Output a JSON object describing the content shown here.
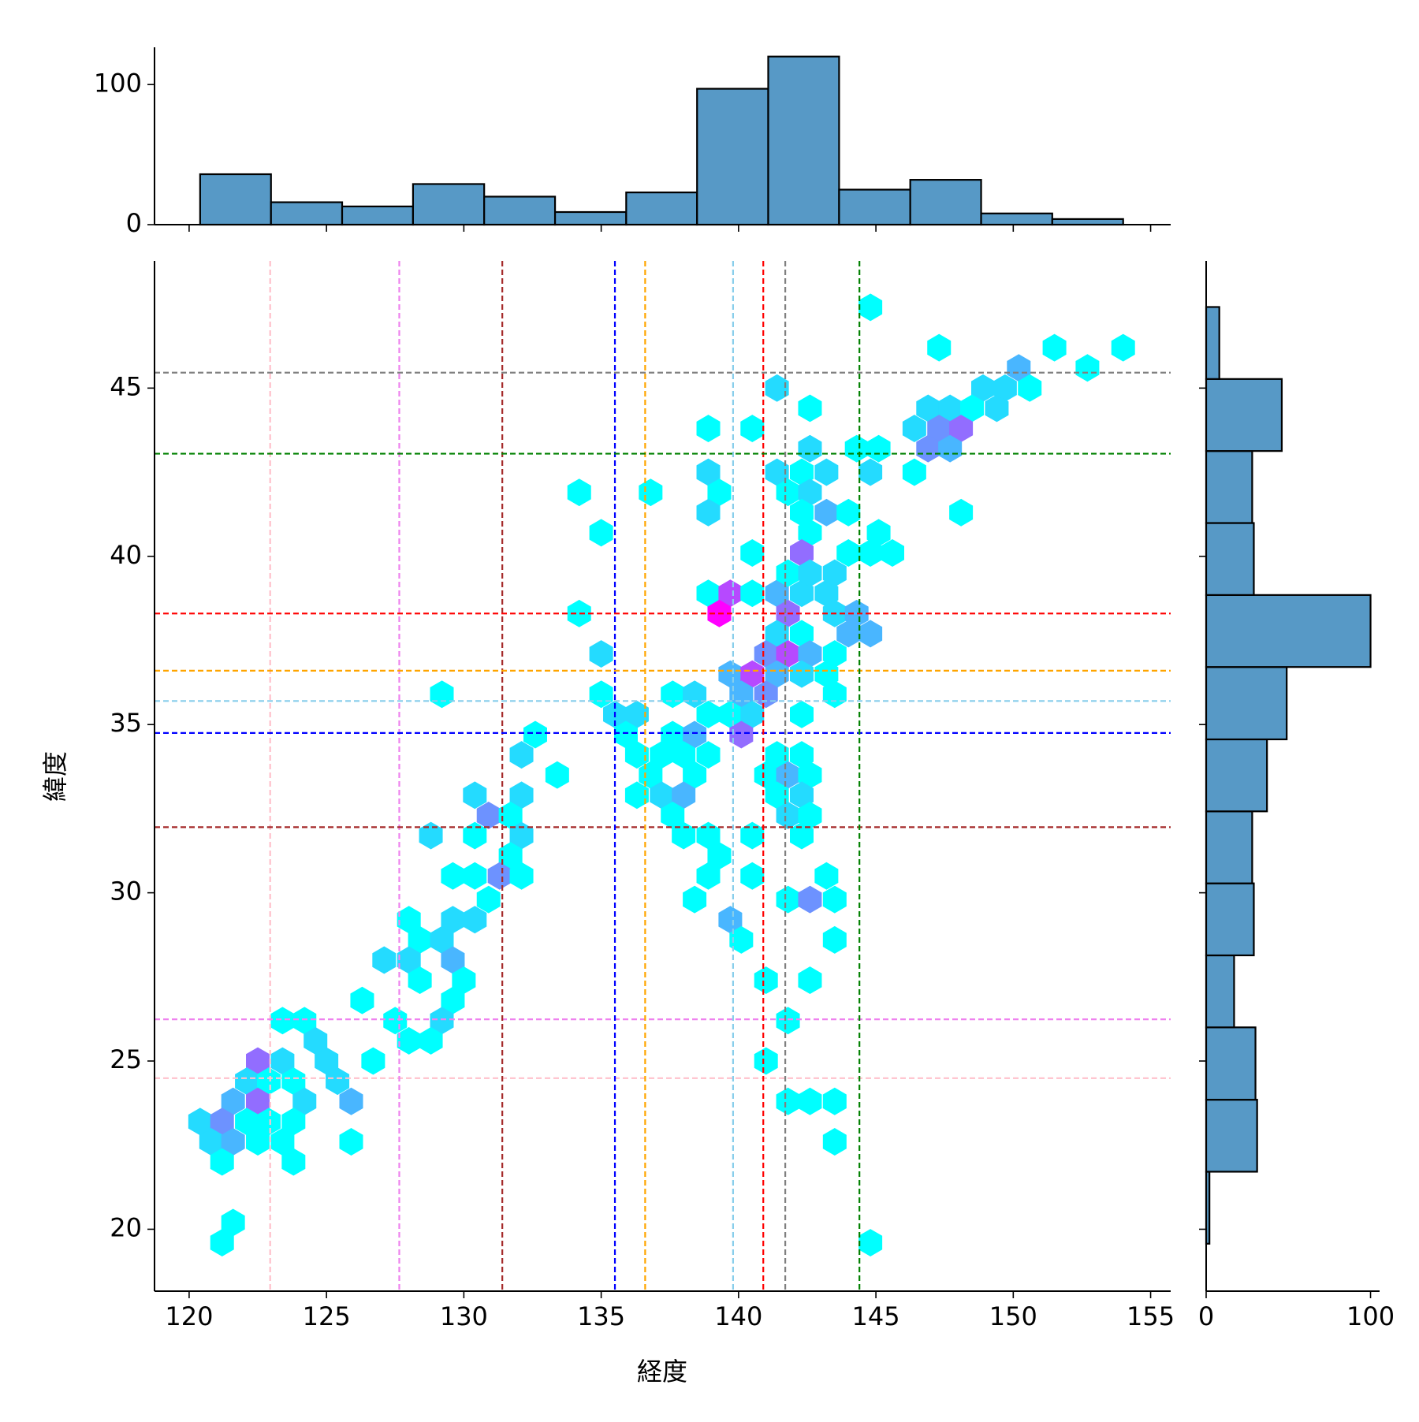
{
  "chart_data": [
    {
      "type": "histogram",
      "orientation": "vertical",
      "color": "#5799c6",
      "edgecolor": "#000000",
      "bins": [
        120.4,
        122.98,
        125.57,
        128.15,
        130.74,
        133.32,
        135.91,
        138.49,
        141.08,
        143.66,
        146.25,
        148.83,
        151.42,
        154.0
      ],
      "values": [
        36,
        16,
        13,
        29,
        20,
        9,
        23,
        97,
        120,
        25,
        32,
        8,
        4
      ],
      "xlim": [
        118.74,
        155.73
      ],
      "ylim": [
        0,
        126.6
      ],
      "yticks": [
        0,
        100
      ]
    },
    {
      "type": "hexbin",
      "xlabel": "経度",
      "ylabel": "緯度",
      "cmap": "cool",
      "clim": [
        1,
        8
      ],
      "xlim": [
        118.74,
        155.73
      ],
      "ylim": [
        18.16,
        48.78
      ],
      "xticks": [
        120,
        125,
        130,
        135,
        140,
        145,
        150,
        155
      ],
      "yticks": [
        20,
        25,
        30,
        35,
        40,
        45
      ],
      "x": [
        144.8,
        147.3,
        151.5,
        154.0,
        152.7,
        150.2,
        141.4,
        148.9,
        149.7,
        150.6,
        142.6,
        146.9,
        147.7,
        148.5,
        149.4,
        138.9,
        140.5,
        146.4,
        147.3,
        148.1,
        142.6,
        144.3,
        145.1,
        146.9,
        147.7,
        138.9,
        141.4,
        142.3,
        143.2,
        144.8,
        146.4,
        134.2,
        136.8,
        139.3,
        141.8,
        142.6,
        138.9,
        142.3,
        143.2,
        144.0,
        148.1,
        135.0,
        142.6,
        145.1,
        140.5,
        142.3,
        144.0,
        144.8,
        145.6,
        138.9,
        139.7,
        140.5,
        141.4,
        142.3,
        143.2,
        141.8,
        142.6,
        143.5,
        134.2,
        139.3,
        141.8,
        143.5,
        144.3,
        135.0,
        141.4,
        142.3,
        144.0,
        144.8,
        141.0,
        141.8,
        142.6,
        143.5,
        139.7,
        140.5,
        141.4,
        142.3,
        143.2,
        129.2,
        135.0,
        137.6,
        138.4,
        140.1,
        141.0,
        143.5,
        135.5,
        136.3,
        138.9,
        139.7,
        140.5,
        142.3,
        132.6,
        135.9,
        137.6,
        138.4,
        140.1,
        132.1,
        136.3,
        137.2,
        138.0,
        138.9,
        141.4,
        142.3,
        133.4,
        136.8,
        138.4,
        141.0,
        141.8,
        142.6,
        130.4,
        132.1,
        136.3,
        137.2,
        138.0,
        141.4,
        142.3,
        130.9,
        131.7,
        137.6,
        141.8,
        142.6,
        128.8,
        130.4,
        132.1,
        138.0,
        138.9,
        140.5,
        142.3,
        131.7,
        139.3,
        129.6,
        130.4,
        131.3,
        132.1,
        138.9,
        140.5,
        143.2,
        130.9,
        138.4,
        141.8,
        142.6,
        143.5,
        128.0,
        129.6,
        130.4,
        139.7,
        128.4,
        129.2,
        140.1,
        143.5,
        127.1,
        128.0,
        129.6,
        128.4,
        130.0,
        141.0,
        142.6,
        126.3,
        129.6,
        123.4,
        124.2,
        127.5,
        129.2,
        141.8,
        124.6,
        128.0,
        128.8,
        122.5,
        123.4,
        125.0,
        126.7,
        141.0,
        122.1,
        122.9,
        123.8,
        125.4,
        121.6,
        122.5,
        124.2,
        125.9,
        141.8,
        142.6,
        143.5,
        120.4,
        121.2,
        122.1,
        122.9,
        123.8,
        120.8,
        121.6,
        122.5,
        123.4,
        125.9,
        143.5,
        121.2,
        123.8,
        121.6,
        121.2,
        144.8
      ],
      "y": [
        47.4,
        46.2,
        46.2,
        46.2,
        45.6,
        45.6,
        45.0,
        45.0,
        45.0,
        45.0,
        44.4,
        44.4,
        44.4,
        44.4,
        44.4,
        43.8,
        43.8,
        43.8,
        43.8,
        43.8,
        43.2,
        43.2,
        43.2,
        43.2,
        43.2,
        42.5,
        42.5,
        42.5,
        42.5,
        42.5,
        42.5,
        41.9,
        41.9,
        41.9,
        41.9,
        41.9,
        41.3,
        41.3,
        41.3,
        41.3,
        41.3,
        40.7,
        40.7,
        40.7,
        40.1,
        40.1,
        40.1,
        40.1,
        40.1,
        38.9,
        38.9,
        38.9,
        38.9,
        38.9,
        38.9,
        39.5,
        39.5,
        39.5,
        38.3,
        38.3,
        38.3,
        38.3,
        38.3,
        37.1,
        37.7,
        37.7,
        37.7,
        37.7,
        37.1,
        37.1,
        37.1,
        37.1,
        36.5,
        36.5,
        36.5,
        36.5,
        36.5,
        35.9,
        35.9,
        35.9,
        35.9,
        35.9,
        35.9,
        35.9,
        35.3,
        35.3,
        35.3,
        35.3,
        35.3,
        35.3,
        34.7,
        34.7,
        34.7,
        34.7,
        34.7,
        34.1,
        34.1,
        34.1,
        34.1,
        34.1,
        34.1,
        34.1,
        33.5,
        33.5,
        33.5,
        33.5,
        33.5,
        33.5,
        32.9,
        32.9,
        32.9,
        32.9,
        32.9,
        32.9,
        32.9,
        32.3,
        32.3,
        32.3,
        32.3,
        32.3,
        31.7,
        31.7,
        31.7,
        31.7,
        31.7,
        31.7,
        31.7,
        31.1,
        31.1,
        30.5,
        30.5,
        30.5,
        30.5,
        30.5,
        30.5,
        30.5,
        29.8,
        29.8,
        29.8,
        29.8,
        29.8,
        29.2,
        29.2,
        29.2,
        29.2,
        28.6,
        28.6,
        28.6,
        28.6,
        28.0,
        28.0,
        28.0,
        27.4,
        27.4,
        27.4,
        27.4,
        26.8,
        26.8,
        26.2,
        26.2,
        26.2,
        26.2,
        26.2,
        25.6,
        25.6,
        25.6,
        25.0,
        25.0,
        25.0,
        25.0,
        25.0,
        24.4,
        24.4,
        24.4,
        24.4,
        23.8,
        23.8,
        23.8,
        23.8,
        23.8,
        23.8,
        23.8,
        23.2,
        23.2,
        23.2,
        23.2,
        23.2,
        22.6,
        22.6,
        22.6,
        22.6,
        22.6,
        22.6,
        22.0,
        22.0,
        20.2,
        19.6,
        19.6
      ],
      "counts": [
        1,
        1,
        1,
        1,
        1,
        3,
        2,
        2,
        2,
        1,
        1,
        2,
        2,
        1,
        2,
        1,
        1,
        2,
        4,
        5,
        2,
        1,
        1,
        4,
        3,
        2,
        2,
        1,
        2,
        2,
        1,
        1,
        1,
        1,
        1,
        2,
        2,
        1,
        3,
        1,
        1,
        1,
        1,
        1,
        1,
        5,
        1,
        1,
        1,
        1,
        6,
        1,
        3,
        2,
        2,
        1,
        2,
        2,
        1,
        8,
        5,
        2,
        3,
        2,
        2,
        1,
        3,
        3,
        4,
        6,
        3,
        1,
        3,
        6,
        3,
        2,
        1,
        1,
        1,
        1,
        2,
        3,
        4,
        1,
        2,
        2,
        1,
        1,
        2,
        1,
        1,
        1,
        1,
        3,
        5,
        2,
        1,
        1,
        1,
        1,
        1,
        1,
        1,
        1,
        1,
        1,
        3,
        1,
        2,
        2,
        1,
        2,
        3,
        1,
        2,
        4,
        1,
        1,
        2,
        1,
        2,
        1,
        2,
        1,
        1,
        1,
        1,
        1,
        1,
        1,
        1,
        4,
        1,
        1,
        1,
        1,
        1,
        1,
        1,
        4,
        1,
        1,
        2,
        2,
        3,
        1,
        2,
        1,
        1,
        2,
        2,
        3,
        1,
        1,
        1,
        1,
        1,
        1,
        1,
        1,
        1,
        2,
        1,
        2,
        1,
        1,
        5,
        2,
        2,
        1,
        1,
        2,
        1,
        1,
        2,
        3,
        5,
        2,
        3,
        1,
        1,
        1,
        2,
        4,
        1,
        1,
        1,
        2,
        3,
        1,
        1,
        1,
        1,
        1,
        1,
        1,
        1,
        1
      ],
      "ref_lines": [
        {
          "color": "pink",
          "x": 122.95,
          "y": 24.49
        },
        {
          "color": "violet",
          "x": 127.65,
          "y": 26.24
        },
        {
          "color": "brown",
          "x": 131.4,
          "y": 31.95
        },
        {
          "color": "blue",
          "x": 135.5,
          "y": 34.75
        },
        {
          "color": "orange",
          "x": 136.6,
          "y": 36.6
        },
        {
          "color": "skyblue",
          "x": 139.8,
          "y": 35.7
        },
        {
          "color": "red",
          "x": 140.9,
          "y": 38.3
        },
        {
          "color": "gray",
          "x": 141.7,
          "y": 45.46
        },
        {
          "color": "green",
          "x": 144.4,
          "y": 43.05
        }
      ]
    },
    {
      "type": "histogram",
      "orientation": "horizontal",
      "color": "#5799c6",
      "edgecolor": "#000000",
      "bins": [
        19.57,
        21.71,
        23.85,
        26.0,
        28.14,
        30.28,
        32.42,
        34.56,
        36.71,
        38.85,
        40.99,
        43.13,
        45.27,
        47.41
      ],
      "values": [
        2,
        31,
        30,
        17,
        29,
        28,
        37,
        49,
        100,
        29,
        28,
        46,
        8
      ],
      "xlim": [
        0,
        105.5
      ],
      "ylim": [
        18.16,
        48.78
      ],
      "xticks": [
        0,
        100
      ]
    }
  ]
}
